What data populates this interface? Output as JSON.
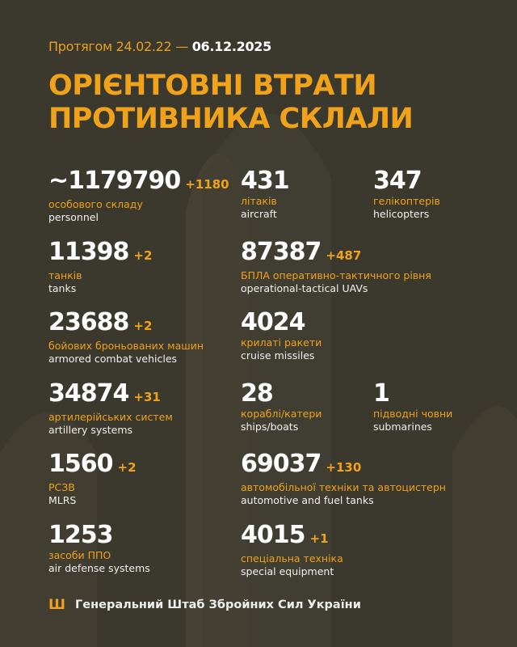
{
  "header": {
    "period_prefix": "Протягом 24.02.22 —",
    "period_date": "06.12.2025",
    "title_line1": "ОРІЄНТОВНІ ВТРАТИ",
    "title_line2": "ПРОТИВНИКА СКЛАЛИ"
  },
  "stats": [
    {
      "value": "~1179790",
      "increase": "+1180",
      "ua": "особового складу",
      "en": "personnel"
    },
    {
      "value": "431",
      "increase": "",
      "ua": "літаків",
      "en": "aircraft"
    },
    {
      "value": "347",
      "increase": "",
      "ua": "гелікоптерів",
      "en": "helicopters"
    },
    {
      "value": "11398",
      "increase": "+2",
      "ua": "танків",
      "en": "tanks"
    },
    {
      "value": "87387",
      "increase": "+487",
      "ua": "БПЛА оперативно-тактичного рівня",
      "en": "operational-tactical UAVs"
    },
    {
      "value": "23688",
      "increase": "+2",
      "ua": "бойових броньованих машин",
      "en": "armored combat vehicles"
    },
    {
      "value": "4024",
      "increase": "",
      "ua": "крилаті ракети",
      "en": "cruise missiles"
    },
    {
      "value": "34874",
      "increase": "+31",
      "ua": "артилерійських систем",
      "en": "artillery systems"
    },
    {
      "value": "28",
      "increase": "",
      "ua": "кораблі/катери",
      "en": "ships/boats"
    },
    {
      "value": "1",
      "increase": "",
      "ua": "підводні човни",
      "en": "submarines"
    },
    {
      "value": "1560",
      "increase": "+2",
      "ua": "РСЗВ",
      "en": "MLRS"
    },
    {
      "value": "69037",
      "increase": "+130",
      "ua": "автомобільної техніки та автоцистерн",
      "en": "automotive and fuel tanks"
    },
    {
      "value": "1253",
      "increase": "",
      "ua": "засоби ППО",
      "en": "air defense systems"
    },
    {
      "value": "4015",
      "increase": "+1",
      "ua": "спеціальна техніка",
      "en": "special equipment"
    }
  ],
  "footer": {
    "text": "Генеральний Штаб Збройних Сил України",
    "icon": "trident-icon"
  },
  "colors": {
    "background": "#3b382d",
    "accent": "#f0a21a"
  }
}
